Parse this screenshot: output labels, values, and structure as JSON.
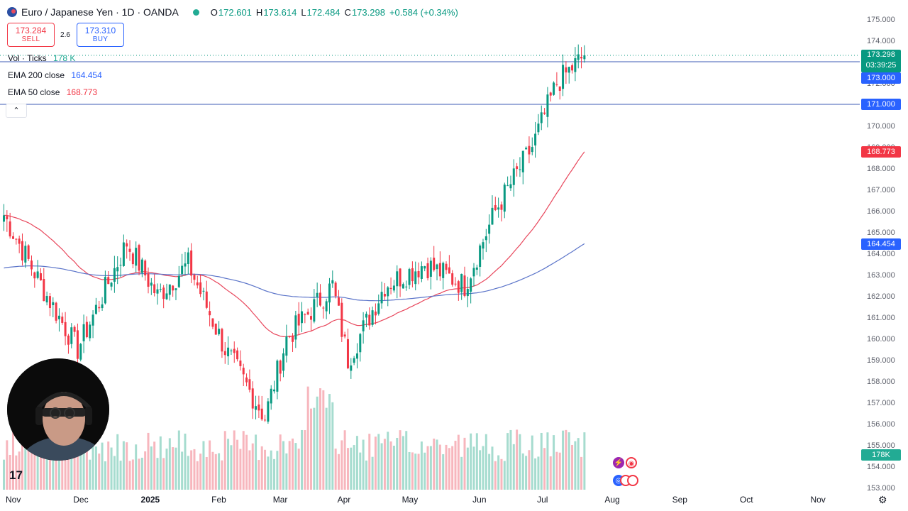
{
  "header": {
    "symbol": "Euro / Japanese Yen · 1D · OANDA",
    "o_label": "O",
    "o_value": "172.601",
    "h_label": "H",
    "h_value": "173.614",
    "l_label": "L",
    "l_value": "172.484",
    "c_label": "C",
    "c_value": "173.298",
    "change": "+0.584 (+0.34%)"
  },
  "trade": {
    "sell_price": "173.284",
    "sell_label": "SELL",
    "spread": "2.6",
    "buy_price": "173.310",
    "buy_label": "BUY"
  },
  "indicators": {
    "vol_name": "Vol · Ticks",
    "vol_value": "178 K",
    "ema200_name": "EMA 200 close",
    "ema200_value": "164.454",
    "ema50_name": "EMA 50 close",
    "ema50_value": "168.773",
    "collapse_icon": "chevron-up-icon"
  },
  "price_axis": {
    "ticks": [
      "175.000",
      "174.000",
      "173.000",
      "172.000",
      "171.000",
      "170.000",
      "169.000",
      "168.000",
      "167.000",
      "166.000",
      "165.000",
      "164.000",
      "163.000",
      "162.000",
      "161.000",
      "160.000",
      "159.000",
      "158.000",
      "157.000",
      "156.000",
      "155.000",
      "154.000",
      "153.000"
    ],
    "labels": {
      "last_price": "173.298",
      "countdown": "03:39:25",
      "line_173": "173.000",
      "line_171": "171.000",
      "ema50": "168.773",
      "ema200": "164.454",
      "volume": "178K"
    }
  },
  "time_axis": {
    "labels": [
      "Nov",
      "Dec",
      "2025",
      "Feb",
      "Mar",
      "Apr",
      "May",
      "Jun",
      "Jul",
      "Aug",
      "Sep",
      "Oct",
      "Nov"
    ]
  },
  "colors": {
    "up": "#089981",
    "down": "#f23645",
    "ema50": "#e8475c",
    "ema200": "#5b74c9",
    "hline": "#3d5bb5",
    "accent": "#2962ff"
  },
  "chart_data": {
    "type": "candlestick",
    "ylim": [
      153,
      175
    ],
    "horizontal_lines": [
      173.0,
      171.0
    ],
    "key_points": [
      {
        "date": "2024-11-01",
        "close": 165.8
      },
      {
        "date": "2024-11-20",
        "close": 162.0
      },
      {
        "date": "2024-12-05",
        "close": 159.5
      },
      {
        "date": "2024-12-27",
        "close": 164.5
      },
      {
        "date": "2025-01-10",
        "close": 162.0
      },
      {
        "date": "2025-01-24",
        "close": 163.5
      },
      {
        "date": "2025-02-10",
        "close": 159.5
      },
      {
        "date": "2025-02-28",
        "close": 156.3
      },
      {
        "date": "2025-03-10",
        "close": 160.0
      },
      {
        "date": "2025-03-31",
        "close": 162.5
      },
      {
        "date": "2025-04-07",
        "close": 159.0
      },
      {
        "date": "2025-04-24",
        "close": 162.5
      },
      {
        "date": "2025-05-12",
        "close": 163.5
      },
      {
        "date": "2025-05-30",
        "close": 162.5
      },
      {
        "date": "2025-06-13",
        "close": 166.0
      },
      {
        "date": "2025-06-30",
        "close": 169.0
      },
      {
        "date": "2025-07-11",
        "close": 172.0
      },
      {
        "date": "2025-07-24",
        "close": 173.298
      }
    ],
    "ema50_end": 168.773,
    "ema200_end": 164.454,
    "volume_last": "178K"
  },
  "events": {
    "flash_icon": "lightning-icon",
    "target_icon": "target-icon",
    "globe_icon": "globe-icon"
  },
  "settings_icon": "gear-icon"
}
